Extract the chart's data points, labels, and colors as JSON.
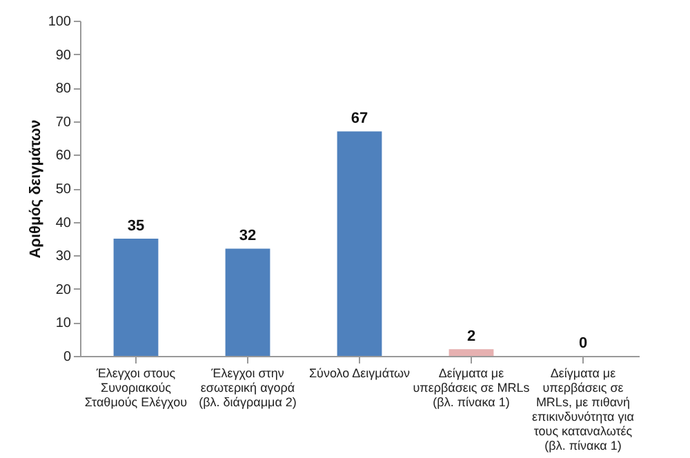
{
  "chart_data": {
    "type": "bar",
    "ylabel": "Αριθμός δειγμάτων",
    "categories": [
      "Έλεγχοι στους Συνοριακούς Σταθμούς Ελέγχου",
      "Έλεγχοι στην εσωτερική αγορά (βλ. διάγραμμα 2)",
      "Σύνολο Δειγμάτων",
      "Δείγματα με υπερβάσεις σε MRLs (βλ. πίνακα 1)",
      "Δείγματα με υπερβάσεις σε MRLs, με πιθανή επικινδυνότητα για τους καταναλωτές (βλ. πίνακα 1)"
    ],
    "values": [
      35,
      32,
      67,
      2,
      0
    ],
    "colors": [
      "#4f81bd",
      "#4f81bd",
      "#4f81bd",
      "#e6b0b0",
      "#c0504d"
    ],
    "ylim": [
      0,
      100
    ],
    "yticks": [
      0,
      10,
      20,
      30,
      40,
      50,
      60,
      70,
      80,
      90,
      100
    ],
    "data_labels": true,
    "grid": false
  }
}
